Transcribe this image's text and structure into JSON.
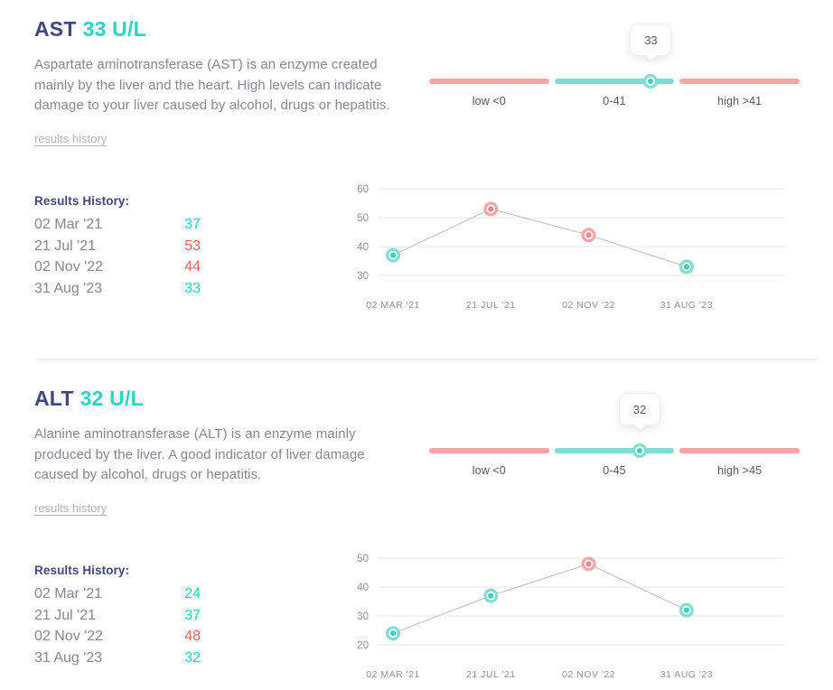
{
  "colors": {
    "navy": "#41467e",
    "teal_text": "#25d3bf",
    "teal_dark": "#3ecfbe",
    "teal_light": "#82dcd2",
    "coral": "#f58989",
    "coral_light": "#f6a6a6",
    "red_text": "#fb6363",
    "gray_text": "#85868e",
    "link_gray": "#b1b2b9",
    "label_dark": "#55565f",
    "axis_gray": "#8f909a",
    "grid": "#f3f3f6",
    "line": "#babbc2"
  },
  "sections": [
    {
      "title": "AST",
      "reading": "33 U/L",
      "description": "Aspartate aminotransferase (AST) is an enzyme created mainly by the liver and the heart. High levels can indicate damage to your liver caused by alcohol, drugs or hepatitis.",
      "link_label": "results history",
      "range": {
        "value": 33,
        "max": 41,
        "tooltip": "33",
        "low_label": "low <0",
        "normal_label": "0-41",
        "high_label": "high >41"
      },
      "history": {
        "header": "Results History:",
        "rows": [
          {
            "date": "02 Mar '21",
            "value": "37",
            "status": "normal"
          },
          {
            "date": "21 Jul '21",
            "value": "53",
            "status": "high"
          },
          {
            "date": "02 Nov '22",
            "value": "44",
            "status": "high"
          },
          {
            "date": "31 Aug '23",
            "value": "33",
            "status": "normal"
          }
        ]
      },
      "chart_data": {
        "type": "line",
        "x": [
          "02 MAR '21",
          "21 JUL '21",
          "02 NOV '22",
          "31 AUG '23"
        ],
        "values": [
          37,
          53,
          44,
          33
        ],
        "point_status": [
          "normal",
          "high",
          "high",
          "normal"
        ],
        "yticks": [
          30,
          40,
          50,
          60
        ],
        "ylim": [
          30,
          60
        ],
        "grid": true,
        "legend": "none"
      }
    },
    {
      "title": "ALT",
      "reading": "32 U/L",
      "description": "Alanine aminotransferase (ALT) is an enzyme mainly produced by the liver. A good indicator of liver damage caused by alcohol, drugs or hepatitis.",
      "link_label": "results history",
      "range": {
        "value": 32,
        "max": 45,
        "tooltip": "32",
        "low_label": "low <0",
        "normal_label": "0-45",
        "high_label": "high >45"
      },
      "history": {
        "header": "Results History:",
        "rows": [
          {
            "date": "02 Mar '21",
            "value": "24",
            "status": "normal"
          },
          {
            "date": "21 Jul '21",
            "value": "37",
            "status": "normal"
          },
          {
            "date": "02 Nov '22",
            "value": "48",
            "status": "high"
          },
          {
            "date": "31 Aug '23",
            "value": "32",
            "status": "normal"
          }
        ]
      },
      "chart_data": {
        "type": "line",
        "x": [
          "02 MAR '21",
          "21 JUL '21",
          "02 NOV '22",
          "31 AUG '23"
        ],
        "values": [
          24,
          37,
          48,
          32
        ],
        "point_status": [
          "normal",
          "normal",
          "high",
          "normal"
        ],
        "yticks": [
          20,
          30,
          40,
          50
        ],
        "ylim": [
          20,
          50
        ],
        "grid": true,
        "legend": "none"
      }
    }
  ]
}
